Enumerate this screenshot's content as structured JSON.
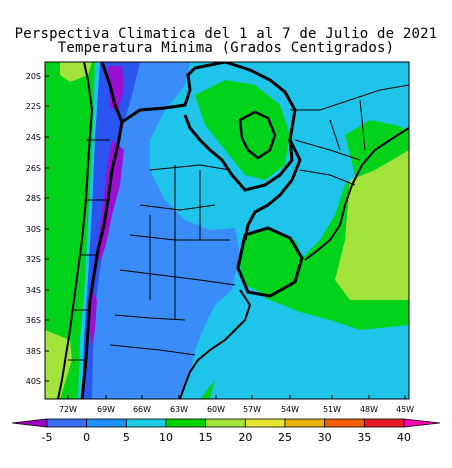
{
  "title": {
    "line1": "Perspectiva Climatica del 1 al 7 de Julio de 2021",
    "line2": "Temperatura Minima (Grados Centigrados)"
  },
  "map": {
    "lat_labels": [
      "20S",
      "22S",
      "24S",
      "26S",
      "28S",
      "30S",
      "32S",
      "34S",
      "36S",
      "38S",
      "40S"
    ],
    "lon_labels": [
      "72W",
      "69W",
      "66W",
      "63W",
      "60W",
      "57W",
      "54W",
      "51W",
      "48W",
      "45W"
    ]
  },
  "colorbar": {
    "labels": [
      "-5",
      "0",
      "5",
      "10",
      "15",
      "20",
      "25",
      "30",
      "35",
      "40"
    ],
    "colors": [
      "#a000c8",
      "#3a6cf4",
      "#1e90ff",
      "#1fcde6",
      "#00d400",
      "#a3e23a",
      "#e6e632",
      "#e8b400",
      "#f06000",
      "#ea1a28",
      "#ff00b4"
    ]
  },
  "colors": {
    "purple": "#9b10d2",
    "blue_dark": "#2a55f0",
    "blue": "#3a8cf8",
    "cyan": "#1ec4ea",
    "green": "#00d31a",
    "lime": "#a2e33c",
    "border": "#000000"
  }
}
